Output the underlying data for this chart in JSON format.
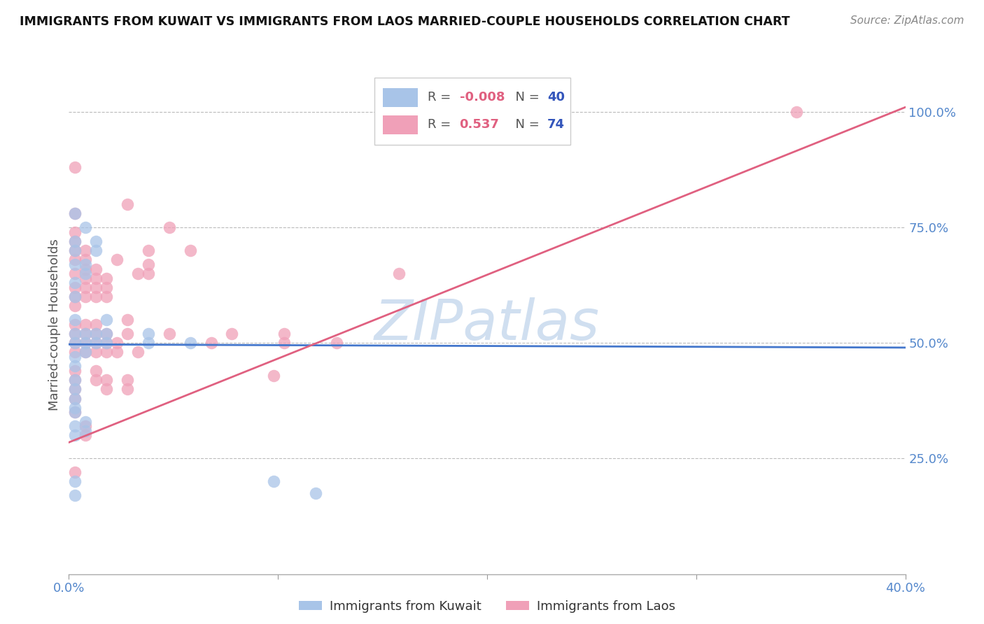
{
  "title": "IMMIGRANTS FROM KUWAIT VS IMMIGRANTS FROM LAOS MARRIED-COUPLE HOUSEHOLDS CORRELATION CHART",
  "source": "Source: ZipAtlas.com",
  "ylabel": "Married-couple Households",
  "xlim": [
    0.0,
    0.4
  ],
  "ylim": [
    0.0,
    1.08
  ],
  "kuwait_color": "#a8c4e8",
  "laos_color": "#f0a0b8",
  "kuwait_line_color": "#4477cc",
  "laos_line_color": "#e06080",
  "watermark": "ZIPatlas",
  "watermark_color": "#d0dff0",
  "background_color": "#ffffff",
  "grid_color": "#bbbbbb",
  "axis_label_color": "#5588cc",
  "title_color": "#111111",
  "kuwait_line_x": [
    0.0,
    0.4
  ],
  "kuwait_line_y": [
    0.497,
    0.49
  ],
  "laos_line_x": [
    0.0,
    0.4
  ],
  "laos_line_y": [
    0.285,
    1.01
  ],
  "kuwait_points": [
    [
      0.003,
      0.47
    ],
    [
      0.003,
      0.5
    ],
    [
      0.003,
      0.52
    ],
    [
      0.003,
      0.45
    ],
    [
      0.003,
      0.6
    ],
    [
      0.003,
      0.63
    ],
    [
      0.003,
      0.67
    ],
    [
      0.003,
      0.7
    ],
    [
      0.003,
      0.72
    ],
    [
      0.003,
      0.55
    ],
    [
      0.003,
      0.42
    ],
    [
      0.003,
      0.3
    ],
    [
      0.003,
      0.32
    ],
    [
      0.003,
      0.35
    ],
    [
      0.003,
      0.36
    ],
    [
      0.003,
      0.38
    ],
    [
      0.003,
      0.4
    ],
    [
      0.003,
      0.2
    ],
    [
      0.003,
      0.17
    ],
    [
      0.008,
      0.48
    ],
    [
      0.008,
      0.5
    ],
    [
      0.008,
      0.52
    ],
    [
      0.008,
      0.65
    ],
    [
      0.008,
      0.67
    ],
    [
      0.008,
      0.75
    ],
    [
      0.008,
      0.31
    ],
    [
      0.008,
      0.33
    ],
    [
      0.013,
      0.5
    ],
    [
      0.013,
      0.52
    ],
    [
      0.013,
      0.7
    ],
    [
      0.013,
      0.72
    ],
    [
      0.018,
      0.5
    ],
    [
      0.018,
      0.52
    ],
    [
      0.018,
      0.55
    ],
    [
      0.038,
      0.5
    ],
    [
      0.038,
      0.52
    ],
    [
      0.058,
      0.5
    ],
    [
      0.098,
      0.2
    ],
    [
      0.118,
      0.175
    ],
    [
      0.003,
      0.78
    ]
  ],
  "laos_points": [
    [
      0.003,
      0.48
    ],
    [
      0.003,
      0.5
    ],
    [
      0.003,
      0.52
    ],
    [
      0.003,
      0.54
    ],
    [
      0.003,
      0.44
    ],
    [
      0.003,
      0.42
    ],
    [
      0.003,
      0.4
    ],
    [
      0.003,
      0.38
    ],
    [
      0.003,
      0.35
    ],
    [
      0.003,
      0.58
    ],
    [
      0.003,
      0.6
    ],
    [
      0.003,
      0.62
    ],
    [
      0.003,
      0.65
    ],
    [
      0.003,
      0.68
    ],
    [
      0.003,
      0.7
    ],
    [
      0.003,
      0.72
    ],
    [
      0.003,
      0.74
    ],
    [
      0.003,
      0.22
    ],
    [
      0.008,
      0.48
    ],
    [
      0.008,
      0.5
    ],
    [
      0.008,
      0.52
    ],
    [
      0.008,
      0.54
    ],
    [
      0.008,
      0.6
    ],
    [
      0.008,
      0.62
    ],
    [
      0.008,
      0.64
    ],
    [
      0.008,
      0.66
    ],
    [
      0.008,
      0.68
    ],
    [
      0.008,
      0.7
    ],
    [
      0.008,
      0.3
    ],
    [
      0.008,
      0.32
    ],
    [
      0.013,
      0.48
    ],
    [
      0.013,
      0.5
    ],
    [
      0.013,
      0.52
    ],
    [
      0.013,
      0.54
    ],
    [
      0.013,
      0.6
    ],
    [
      0.013,
      0.62
    ],
    [
      0.013,
      0.64
    ],
    [
      0.013,
      0.66
    ],
    [
      0.013,
      0.42
    ],
    [
      0.013,
      0.44
    ],
    [
      0.018,
      0.48
    ],
    [
      0.018,
      0.5
    ],
    [
      0.018,
      0.52
    ],
    [
      0.018,
      0.6
    ],
    [
      0.018,
      0.62
    ],
    [
      0.018,
      0.64
    ],
    [
      0.018,
      0.4
    ],
    [
      0.018,
      0.42
    ],
    [
      0.023,
      0.48
    ],
    [
      0.023,
      0.5
    ],
    [
      0.023,
      0.68
    ],
    [
      0.028,
      0.8
    ],
    [
      0.028,
      0.4
    ],
    [
      0.028,
      0.42
    ],
    [
      0.033,
      0.65
    ],
    [
      0.033,
      0.48
    ],
    [
      0.038,
      0.65
    ],
    [
      0.038,
      0.7
    ],
    [
      0.038,
      0.67
    ],
    [
      0.048,
      0.75
    ],
    [
      0.048,
      0.52
    ],
    [
      0.058,
      0.7
    ],
    [
      0.068,
      0.5
    ],
    [
      0.078,
      0.52
    ],
    [
      0.098,
      0.43
    ],
    [
      0.103,
      0.5
    ],
    [
      0.103,
      0.52
    ],
    [
      0.128,
      0.5
    ],
    [
      0.158,
      0.65
    ],
    [
      0.348,
      1.0
    ],
    [
      0.003,
      0.88
    ],
    [
      0.003,
      0.78
    ],
    [
      0.028,
      0.55
    ],
    [
      0.028,
      0.52
    ]
  ]
}
